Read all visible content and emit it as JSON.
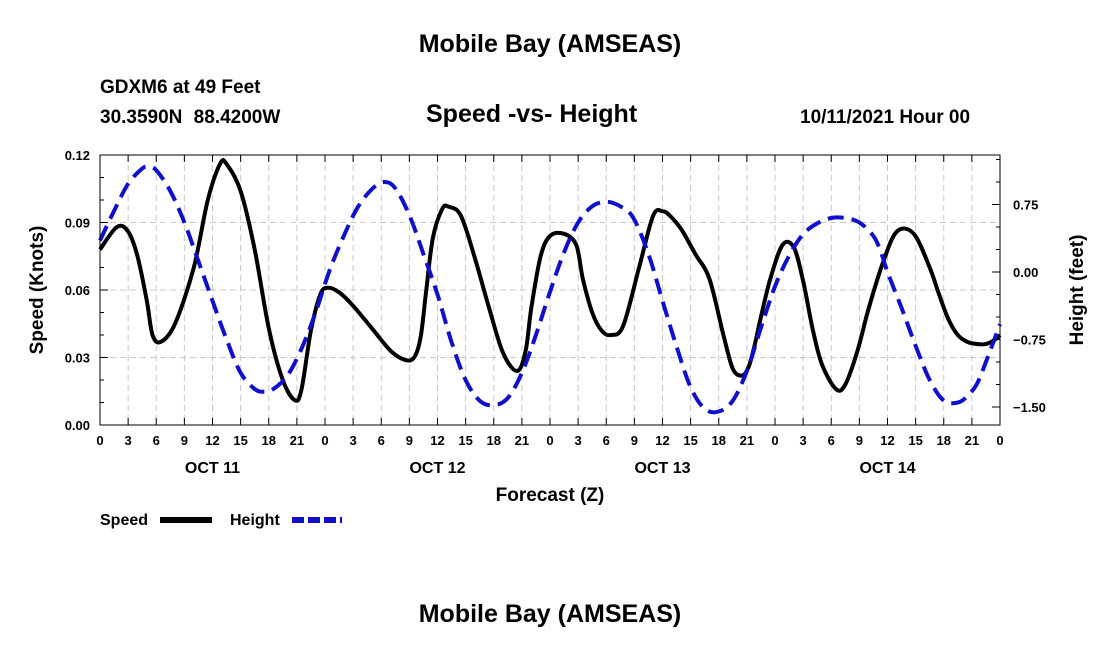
{
  "header": {
    "title": "Mobile Bay (AMSEAS)",
    "station": "GDXM6 at 49 Feet",
    "coordinates": "30.3590N  88.4200W",
    "subtitle": "Speed -vs- Height",
    "datetime": "10/11/2021 Hour 00"
  },
  "footer": {
    "title": "Mobile Bay (AMSEAS)"
  },
  "chart_data": {
    "type": "line",
    "title": "Speed -vs- Height",
    "xlabel": "Forecast (Z)",
    "ylabel": "Speed (Knots)",
    "y2label": "Height (feet)",
    "xlim": [
      0,
      96
    ],
    "ylim": [
      0,
      0.12
    ],
    "y2lim": [
      -1.7,
      1.3
    ],
    "x_ticks": [
      0,
      3,
      6,
      9,
      12,
      15,
      18,
      21,
      24,
      27,
      30,
      33,
      36,
      39,
      42,
      45,
      48,
      51,
      54,
      57,
      60,
      63,
      66,
      69,
      72,
      75,
      78,
      81,
      84,
      87,
      90,
      93,
      96
    ],
    "x_tick_labels": [
      "0",
      "3",
      "6",
      "9",
      "12",
      "15",
      "18",
      "21",
      "0",
      "3",
      "6",
      "9",
      "12",
      "15",
      "18",
      "21",
      "0",
      "3",
      "6",
      "9",
      "12",
      "15",
      "18",
      "21",
      "0",
      "3",
      "6",
      "9",
      "12",
      "15",
      "18",
      "21",
      "0"
    ],
    "day_labels": [
      {
        "x": 12,
        "label": "OCT 11"
      },
      {
        "x": 36,
        "label": "OCT 12"
      },
      {
        "x": 60,
        "label": "OCT 13"
      },
      {
        "x": 84,
        "label": "OCT 14"
      }
    ],
    "y_ticks": [
      0,
      0.03,
      0.06,
      0.09,
      0.12
    ],
    "y_tick_labels": [
      "0.00",
      "0.03",
      "0.06",
      "0.09",
      "0.12"
    ],
    "y2_ticks": [
      0.75,
      0,
      -0.75,
      -1.5
    ],
    "y2_tick_labels": [
      "0.75",
      "0.00",
      "−0.75",
      "−1.50"
    ],
    "grid": true,
    "legend": {
      "position": "bottom-left",
      "speed_label": "Speed",
      "height_label": "Height"
    },
    "series": [
      {
        "name": "Speed",
        "axis": "left",
        "color": "#000000",
        "style": "solid",
        "x": [
          0,
          1.8,
          3,
          4,
          5,
          5.6,
          6.5,
          8,
          10,
          11.5,
          12.8,
          13.5,
          15,
          16.5,
          18,
          19.5,
          20.8,
          21.5,
          22.5,
          23.5,
          24.3,
          25.5,
          27,
          29,
          31,
          32.5,
          33.5,
          34.2,
          34.8,
          35.5,
          36.5,
          37.2,
          38.5,
          40,
          41.5,
          43,
          44.5,
          45.4,
          46,
          47,
          48,
          49.5,
          50.8,
          51.5,
          52.5,
          53.5,
          54.5,
          55.8,
          57.5,
          59,
          60,
          60.8,
          62,
          63.5,
          65,
          66.5,
          67.5,
          68.5,
          69.2,
          69.8,
          70.5,
          71.5,
          72.8,
          74,
          75,
          76,
          77,
          78.5,
          79.5,
          80.8,
          82,
          83.5,
          85,
          86.8,
          88.5,
          89.5,
          90.5,
          91.5,
          92.5,
          93.5,
          94.5,
          95.5,
          96
        ],
        "values": [
          0.078,
          0.088,
          0.086,
          0.075,
          0.055,
          0.04,
          0.037,
          0.045,
          0.07,
          0.1,
          0.116,
          0.116,
          0.104,
          0.078,
          0.043,
          0.02,
          0.011,
          0.016,
          0.042,
          0.058,
          0.061,
          0.059,
          0.053,
          0.043,
          0.033,
          0.029,
          0.03,
          0.039,
          0.06,
          0.083,
          0.096,
          0.097,
          0.093,
          0.074,
          0.052,
          0.032,
          0.024,
          0.033,
          0.052,
          0.075,
          0.084,
          0.085,
          0.08,
          0.065,
          0.05,
          0.042,
          0.04,
          0.044,
          0.07,
          0.093,
          0.095,
          0.093,
          0.087,
          0.076,
          0.065,
          0.04,
          0.025,
          0.022,
          0.026,
          0.035,
          0.048,
          0.065,
          0.08,
          0.079,
          0.064,
          0.043,
          0.027,
          0.016,
          0.018,
          0.033,
          0.052,
          0.072,
          0.086,
          0.085,
          0.07,
          0.058,
          0.047,
          0.04,
          0.037,
          0.036,
          0.036,
          0.038,
          0.04
        ]
      },
      {
        "name": "Height",
        "axis": "right",
        "color": "#1010cc",
        "style": "dashed",
        "x": [
          0,
          1.5,
          3,
          4.5,
          5.2,
          6,
          7.5,
          9,
          10.5,
          12,
          13.5,
          15,
          16.5,
          17.5,
          18.5,
          20,
          21.5,
          23,
          24.5,
          26,
          27.5,
          29,
          30.3,
          31.5,
          33,
          34.5,
          36,
          37.5,
          39,
          40.5,
          42,
          43.5,
          45,
          46.5,
          48,
          49.5,
          51,
          52.5,
          54,
          55.5,
          56.9,
          58.5,
          60,
          61.5,
          63,
          64.5,
          66,
          67.5,
          69,
          70.5,
          72,
          73.5,
          75,
          76.5,
          78,
          79.5,
          81,
          82.5,
          83.3,
          84,
          85.5,
          87,
          88.5,
          90,
          91.5,
          92.5,
          93.5,
          94.5,
          96
        ],
        "values": [
          0.35,
          0.68,
          0.98,
          1.15,
          1.17,
          1.13,
          0.9,
          0.55,
          0.12,
          -0.32,
          -0.75,
          -1.12,
          -1.3,
          -1.33,
          -1.3,
          -1.15,
          -0.85,
          -0.45,
          0.02,
          0.4,
          0.72,
          0.92,
          1.0,
          0.93,
          0.63,
          0.2,
          -0.25,
          -0.78,
          -1.2,
          -1.43,
          -1.48,
          -1.4,
          -1.12,
          -0.7,
          -0.22,
          0.22,
          0.55,
          0.73,
          0.78,
          0.73,
          0.6,
          0.2,
          -0.32,
          -0.83,
          -1.28,
          -1.52,
          -1.55,
          -1.43,
          -1.1,
          -0.62,
          -0.16,
          0.18,
          0.42,
          0.54,
          0.6,
          0.6,
          0.55,
          0.4,
          0.22,
          0.0,
          -0.4,
          -0.82,
          -1.2,
          -1.43,
          -1.45,
          -1.38,
          -1.25,
          -1.0,
          -0.58
        ]
      }
    ]
  }
}
